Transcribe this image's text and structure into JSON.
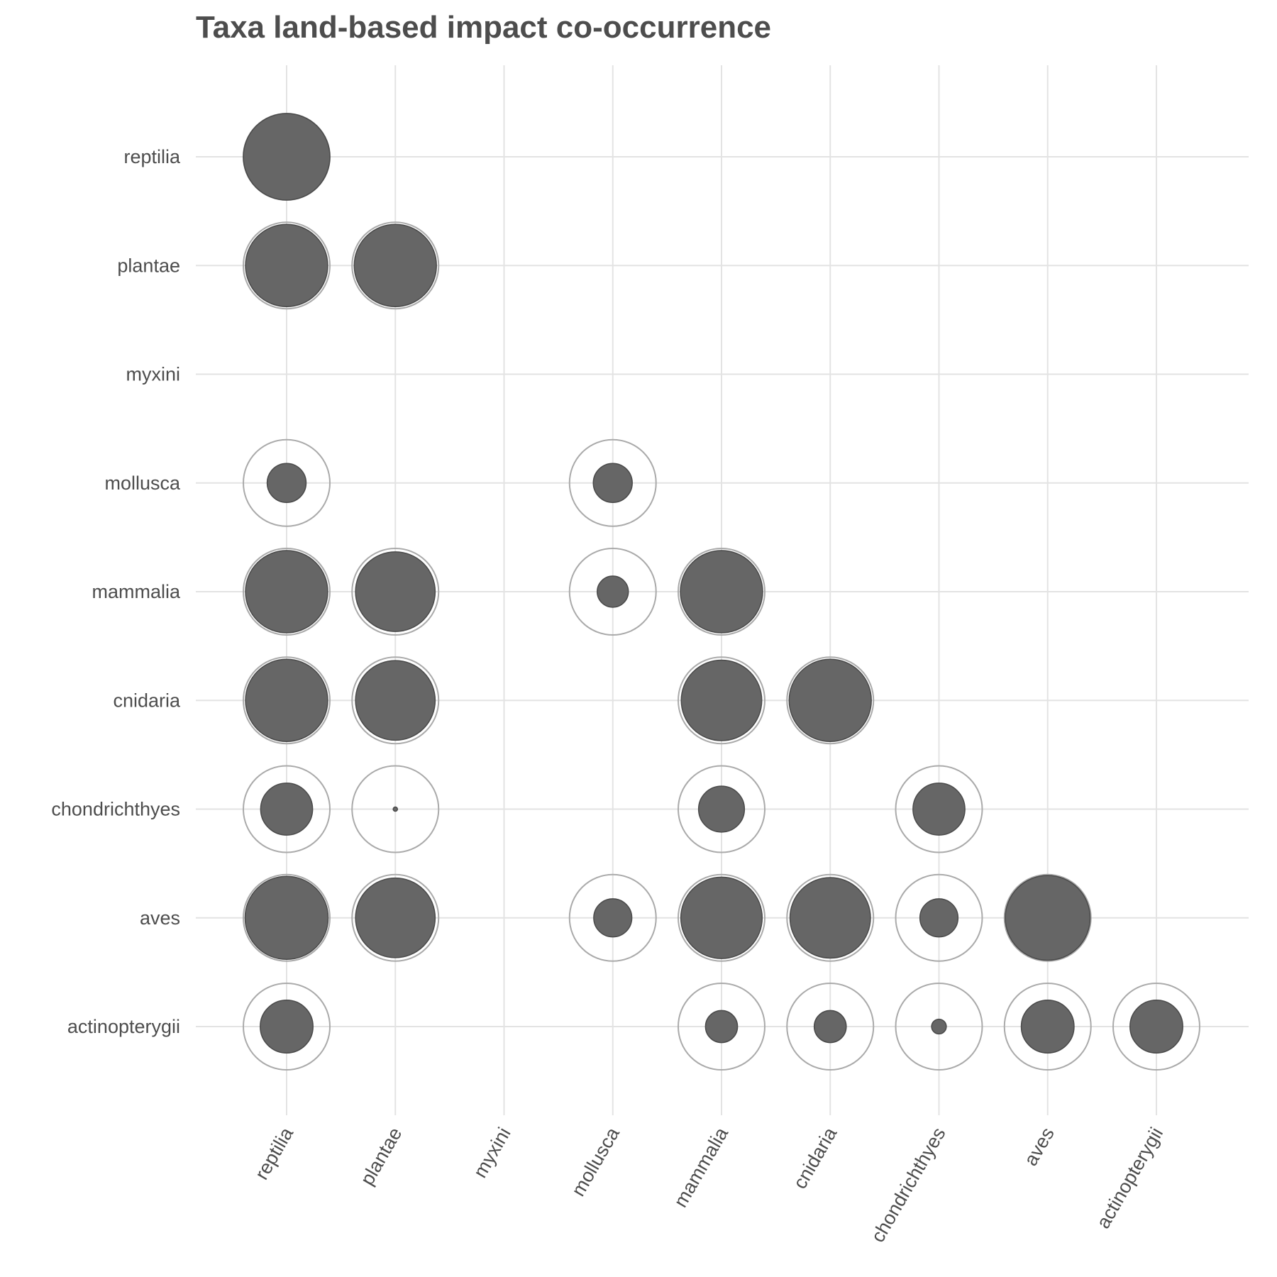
{
  "chart_data": {
    "type": "bubble-matrix",
    "title": "Taxa land-based impact co-occurrence",
    "xlabel": "",
    "ylabel": "",
    "x_categories": [
      "reptilia",
      "plantae",
      "myxini",
      "mollusca",
      "mammalia",
      "cnidaria",
      "chondrichthyes",
      "aves",
      "actinopterygii"
    ],
    "y_categories": [
      "reptilia",
      "plantae",
      "myxini",
      "mollusca",
      "mammalia",
      "cnidaria",
      "chondrichthyes",
      "aves",
      "actinopterygii"
    ],
    "grid": true,
    "legend": "none",
    "colors": {
      "filled": "#666666",
      "filled_stroke": "#4a4a4a",
      "outline": "#aaaaaa",
      "grid": "#e3e3e3",
      "text": "#4d4d4d"
    },
    "cells": [
      {
        "x": "reptilia",
        "y": "reptilia",
        "value": 1.0
      },
      {
        "x": "reptilia",
        "y": "plantae",
        "value": 0.95
      },
      {
        "x": "plantae",
        "y": "plantae",
        "value": 0.95
      },
      {
        "x": "reptilia",
        "y": "mollusca",
        "value": 0.45
      },
      {
        "x": "mollusca",
        "y": "mollusca",
        "value": 0.45
      },
      {
        "x": "reptilia",
        "y": "mammalia",
        "value": 0.95
      },
      {
        "x": "plantae",
        "y": "mammalia",
        "value": 0.92
      },
      {
        "x": "mollusca",
        "y": "mammalia",
        "value": 0.36
      },
      {
        "x": "mammalia",
        "y": "mammalia",
        "value": 0.95
      },
      {
        "x": "reptilia",
        "y": "cnidaria",
        "value": 0.95
      },
      {
        "x": "plantae",
        "y": "cnidaria",
        "value": 0.92
      },
      {
        "x": "mammalia",
        "y": "cnidaria",
        "value": 0.93
      },
      {
        "x": "cnidaria",
        "y": "cnidaria",
        "value": 0.95
      },
      {
        "x": "reptilia",
        "y": "chondrichthyes",
        "value": 0.6
      },
      {
        "x": "plantae",
        "y": "chondrichthyes",
        "value": 0.05
      },
      {
        "x": "mammalia",
        "y": "chondrichthyes",
        "value": 0.53
      },
      {
        "x": "chondrichthyes",
        "y": "chondrichthyes",
        "value": 0.6
      },
      {
        "x": "reptilia",
        "y": "aves",
        "value": 0.96
      },
      {
        "x": "plantae",
        "y": "aves",
        "value": 0.92
      },
      {
        "x": "mollusca",
        "y": "aves",
        "value": 0.44
      },
      {
        "x": "mammalia",
        "y": "aves",
        "value": 0.94
      },
      {
        "x": "cnidaria",
        "y": "aves",
        "value": 0.93
      },
      {
        "x": "chondrichthyes",
        "y": "aves",
        "value": 0.44
      },
      {
        "x": "aves",
        "y": "aves",
        "value": 0.98
      },
      {
        "x": "reptilia",
        "y": "actinopterygii",
        "value": 0.61
      },
      {
        "x": "mammalia",
        "y": "actinopterygii",
        "value": 0.37
      },
      {
        "x": "cnidaria",
        "y": "actinopterygii",
        "value": 0.37
      },
      {
        "x": "chondrichthyes",
        "y": "actinopterygii",
        "value": 0.17
      },
      {
        "x": "aves",
        "y": "actinopterygii",
        "value": 0.61
      },
      {
        "x": "actinopterygii",
        "y": "actinopterygii",
        "value": 0.61
      }
    ]
  }
}
